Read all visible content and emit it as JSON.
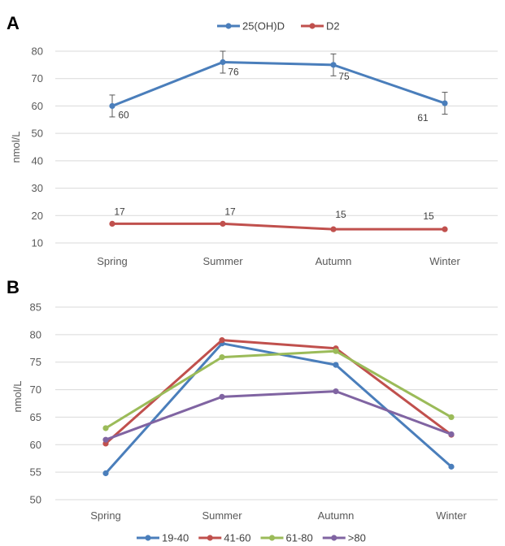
{
  "chart_data": [
    {
      "panel_label": "A",
      "type": "line",
      "categories": [
        "Spring",
        "Summer",
        "Autumn",
        "Winter"
      ],
      "ylabel": "nmol/L",
      "ylim": [
        10,
        80
      ],
      "yticks": [
        10,
        20,
        30,
        40,
        50,
        60,
        70,
        80
      ],
      "grid": true,
      "legend_position": "top-center",
      "series": [
        {
          "name": "25(OH)D",
          "color": "#4a7ebb",
          "values": [
            60,
            76,
            75,
            61
          ],
          "labels": [
            "60",
            "76",
            "75",
            "61"
          ],
          "error": [
            4,
            4,
            4,
            4
          ]
        },
        {
          "name": "D2",
          "color": "#c0504d",
          "values": [
            17,
            17,
            15,
            15
          ],
          "labels": [
            "17",
            "17",
            "15",
            "15"
          ]
        }
      ]
    },
    {
      "panel_label": "B",
      "type": "line",
      "categories": [
        "Spring",
        "Summer",
        "Autumn",
        "Winter"
      ],
      "ylabel": "nmol/L",
      "ylim": [
        50,
        85
      ],
      "yticks": [
        50,
        55,
        60,
        65,
        70,
        75,
        80,
        85
      ],
      "grid": true,
      "legend_position": "bottom-center",
      "series": [
        {
          "name": "19-40",
          "color": "#4a7ebb",
          "values": [
            54.8,
            78.4,
            74.5,
            56.0
          ]
        },
        {
          "name": "41-60",
          "color": "#c0504d",
          "values": [
            60.2,
            79.0,
            77.5,
            61.8
          ]
        },
        {
          "name": "61-80",
          "color": "#9bbb59",
          "values": [
            63.0,
            75.9,
            77.0,
            65.0
          ]
        },
        {
          "name": ">80",
          "color": "#8064a2",
          "values": [
            60.9,
            68.7,
            69.7,
            61.9
          ]
        }
      ]
    }
  ]
}
